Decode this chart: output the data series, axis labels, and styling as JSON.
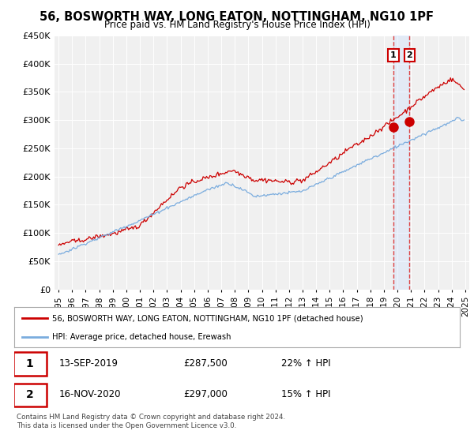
{
  "title": "56, BOSWORTH WAY, LONG EATON, NOTTINGHAM, NG10 1PF",
  "subtitle": "Price paid vs. HM Land Registry's House Price Index (HPI)",
  "red_label": "56, BOSWORTH WAY, LONG EATON, NOTTINGHAM, NG10 1PF (detached house)",
  "blue_label": "HPI: Average price, detached house, Erewash",
  "transaction1": {
    "label": "1",
    "date": "13-SEP-2019",
    "price": 287500,
    "hpi_pct": "22% ↑ HPI",
    "year": 2019.7
  },
  "transaction2": {
    "label": "2",
    "date": "16-NOV-2020",
    "price": 297000,
    "hpi_pct": "15% ↑ HPI",
    "year": 2020.88
  },
  "footnote1": "Contains HM Land Registry data © Crown copyright and database right 2024.",
  "footnote2": "This data is licensed under the Open Government Licence v3.0.",
  "ylim": [
    0,
    450000
  ],
  "yticks": [
    0,
    50000,
    100000,
    150000,
    200000,
    250000,
    300000,
    350000,
    400000,
    450000
  ],
  "background_color": "#ffffff",
  "plot_bg": "#f0f0f0",
  "red_color": "#cc0000",
  "blue_color": "#7aacde",
  "marker_color": "#cc0000",
  "shade_color": "#cce0ff",
  "vline_color": "#dd4444"
}
